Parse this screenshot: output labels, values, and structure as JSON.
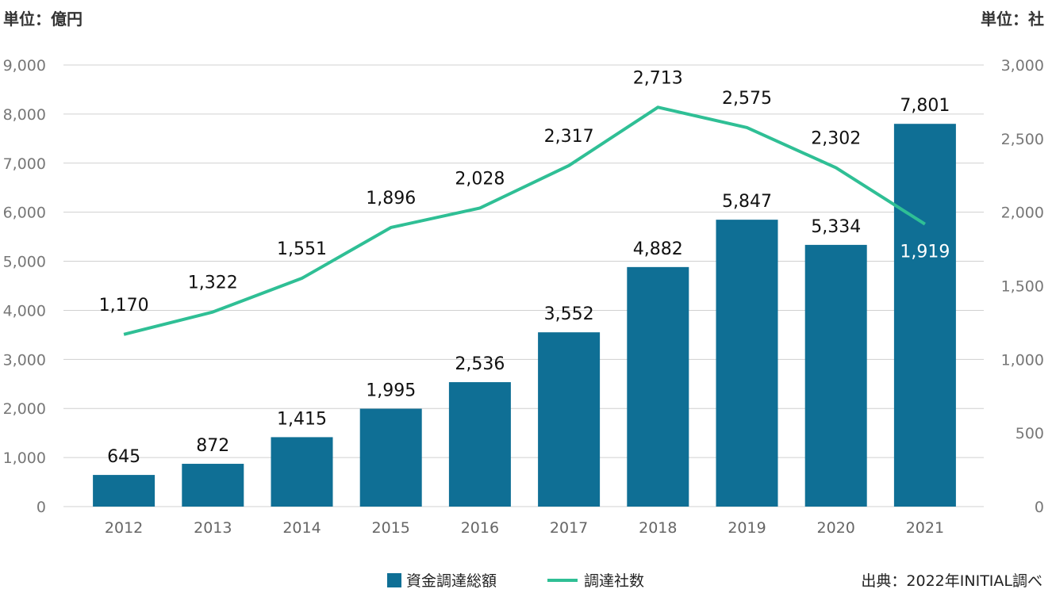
{
  "chart_data": {
    "type": "bar+line",
    "left_unit": "単位：億円",
    "right_unit": "単位：社",
    "categories": [
      "2012",
      "2013",
      "2014",
      "2015",
      "2016",
      "2017",
      "2018",
      "2019",
      "2020",
      "2021"
    ],
    "series": [
      {
        "name": "資金調達総額",
        "type": "bar",
        "axis": "left",
        "color": "#0f6f95",
        "values": [
          645,
          872,
          1415,
          1995,
          2536,
          3552,
          4882,
          5847,
          5334,
          7801
        ],
        "labels": [
          "645",
          "872",
          "1,415",
          "1,995",
          "2,536",
          "3,552",
          "4,882",
          "5,847",
          "5,334",
          "7,801"
        ]
      },
      {
        "name": "調達社数",
        "type": "line",
        "axis": "right",
        "color": "#2fbf95",
        "values": [
          1170,
          1322,
          1551,
          1896,
          2028,
          2317,
          2713,
          2575,
          2302,
          1919
        ],
        "labels": [
          "1,170",
          "1,322",
          "1,551",
          "1,896",
          "2,028",
          "2,317",
          "2,713",
          "2,575",
          "2,302",
          "1,919"
        ]
      }
    ],
    "left_axis": {
      "range": [
        0,
        9000
      ],
      "ticks": [
        "0",
        "1,000",
        "2,000",
        "3,000",
        "4,000",
        "5,000",
        "6,000",
        "7,000",
        "8,000",
        "9,000"
      ]
    },
    "right_axis": {
      "range": [
        0,
        3000
      ],
      "ticks": [
        "0",
        "500",
        "1,000",
        "1,500",
        "2,000",
        "2,500",
        "3,000"
      ]
    },
    "grid": true,
    "legend_position": "bottom"
  },
  "source": "出典：2022年INITIAL調べ"
}
